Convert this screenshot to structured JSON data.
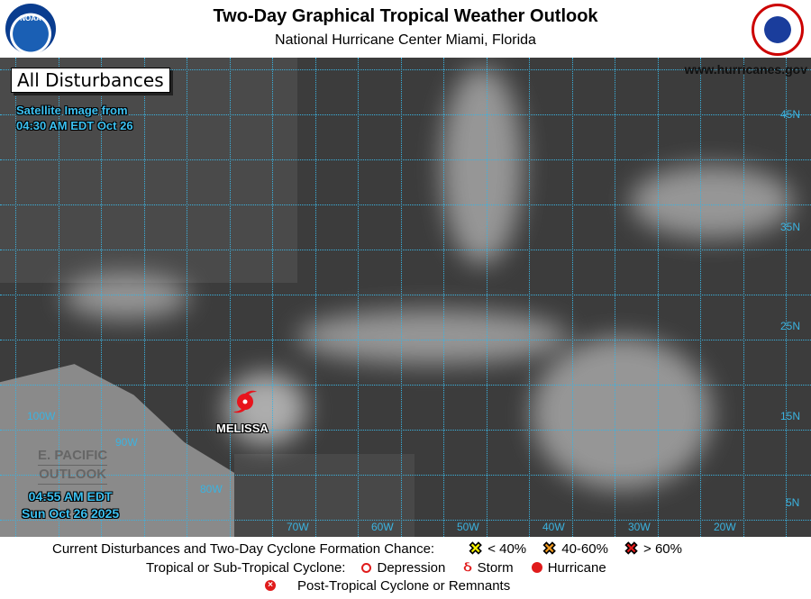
{
  "header": {
    "title": "Two-Day Graphical Tropical Weather Outlook",
    "subtitle": "National Hurricane Center  Miami, Florida",
    "noaa_logo": "NOAA",
    "nws_logo": "National Weather Service"
  },
  "map": {
    "badge": "All Disturbances",
    "satellite_line1": "Satellite Image from",
    "satellite_line2": "04:30 AM EDT Oct 26",
    "website": "www.hurricanes.gov",
    "epac_line1": "E. PACIFIC",
    "epac_line2": "OUTLOOK",
    "time_line1": "04:55 AM EDT",
    "time_line2": "Sun Oct 26 2025",
    "lon_labels": [
      "100W",
      "90W",
      "80W",
      "70W",
      "60W",
      "50W",
      "40W",
      "30W",
      "20W"
    ],
    "lat_labels": [
      "45N",
      "35N",
      "25N",
      "15N",
      "5N"
    ],
    "storm": {
      "name": "MELISSA",
      "type": "hurricane",
      "icon": "hurricane-icon",
      "color": "#e8141c"
    }
  },
  "legend": {
    "line1_label": "Current Disturbances and Two-Day Cyclone Formation Chance:",
    "low": {
      "label": "< 40%",
      "color": "#f5f000"
    },
    "medium": {
      "label": "40-60%",
      "color": "#f29a1f"
    },
    "high": {
      "label": "> 60%",
      "color": "#e01b1b"
    },
    "line2_label": "Tropical or Sub-Tropical Cyclone:",
    "depression": "Depression",
    "storm": "Storm",
    "hurricane": "Hurricane",
    "post_tropical": "Post-Tropical Cyclone or Remnants"
  }
}
